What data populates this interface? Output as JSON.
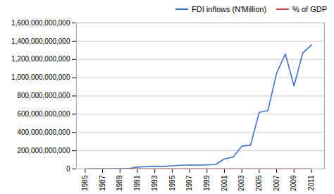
{
  "chart_data": {
    "type": "line",
    "x": [
      1985,
      1986,
      1987,
      1988,
      1989,
      1990,
      1991,
      1992,
      1993,
      1994,
      1995,
      1996,
      1997,
      1998,
      1999,
      2000,
      2001,
      2002,
      2003,
      2004,
      2005,
      2006,
      2007,
      2008,
      2009,
      2010,
      2011
    ],
    "series": [
      {
        "name": "FDI inflows (N'Million)",
        "color": "#4472C4",
        "values": [
          1000000000,
          1500000000,
          2000000000,
          2500000000,
          3000000000,
          4000000000,
          20000000000,
          25000000000,
          30000000000,
          28000000000,
          35000000000,
          40000000000,
          45000000000,
          42000000000,
          45000000000,
          50000000000,
          110000000000,
          130000000000,
          250000000000,
          260000000000,
          620000000000,
          640000000000,
          1050000000000,
          1260000000000,
          910000000000,
          1270000000000,
          1360000000000
        ]
      },
      {
        "name": "% of GDP",
        "color": "#C0504D",
        "values": [
          500000000,
          500000000,
          500000000,
          500000000,
          500000000,
          500000000,
          1000000000,
          1000000000,
          2000000000,
          1500000000,
          1000000000,
          1000000000,
          1000000000,
          1000000000,
          1000000000,
          1000000000,
          1000000000,
          1000000000,
          1000000000,
          1000000000,
          1000000000,
          1000000000,
          1000000000,
          1000000000,
          1000000000,
          1000000000,
          1000000000
        ]
      }
    ],
    "xlim": [
      1984,
      2012.5
    ],
    "xticks": [
      1985,
      1987,
      1989,
      1991,
      1993,
      1995,
      1997,
      1999,
      2001,
      2003,
      2005,
      2007,
      2009,
      2011
    ],
    "ylim": [
      0,
      1600000000000
    ],
    "yticks": [
      0,
      {
        "value": 200000000000,
        "label": "200,000,000,000"
      },
      {
        "value": 400000000000,
        "label": "400,000,000,000"
      },
      {
        "value": 600000000000,
        "label": "600,000,000,000"
      },
      {
        "value": 800000000000,
        "label": "800,000,000,000"
      },
      {
        "value": 1000000000000,
        "label": "1,000,000,000,000"
      },
      {
        "value": 1200000000000,
        "label": "1,200,000,000,000"
      },
      {
        "value": 1400000000000,
        "label": "1,400,000,000,000"
      },
      {
        "value": 1600000000000,
        "label": "1,600,000,000,000"
      }
    ],
    "grid": true,
    "legend": "right"
  }
}
